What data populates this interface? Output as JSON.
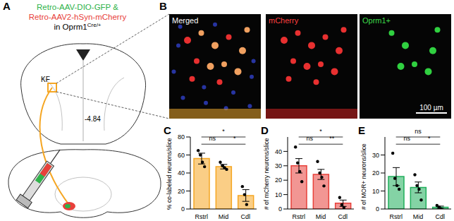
{
  "panel_a": {
    "letter": "A",
    "lines": [
      {
        "text": "Retro-AAV-DIO-GFP &",
        "color": "#2fb34a"
      },
      {
        "text": "Retro-AAV2-hSyn-mCherry",
        "color": "#e8403a"
      },
      {
        "text": "in Oprm1",
        "superscript": "Cre/+",
        "color": "#000000"
      }
    ],
    "region": "KF",
    "bregma": "-4.84"
  },
  "panel_b": {
    "letter": "B",
    "images": [
      {
        "label": "Merged",
        "color": "#ffffff"
      },
      {
        "label": "mCherry",
        "color": "#ff4040"
      },
      {
        "label": "Oprm1+",
        "color": "#3ddc4a"
      }
    ],
    "scale_bar": "100 µm"
  },
  "chart_data": [
    {
      "type": "bar",
      "letter": "C",
      "y_label": "% co-labeled neurons/slice",
      "categories": [
        "Rstrl",
        "Mid",
        "Cdl"
      ],
      "values": [
        56,
        47,
        15
      ],
      "error": [
        6,
        2.5,
        6.5
      ],
      "points": [
        [
          65,
          60,
          52,
          47
        ],
        [
          52,
          48,
          46,
          44
        ],
        [
          25,
          16,
          5
        ]
      ],
      "color": "#f5a623",
      "ylim": [
        0,
        80
      ],
      "yticks": [
        0,
        20,
        40,
        60,
        80
      ],
      "significance": [
        {
          "pair": [
            "Rstrl",
            "Mid"
          ],
          "label": "ns"
        },
        {
          "pair": [
            "Mid",
            "Cdl"
          ],
          "label": "*"
        },
        {
          "pair": [
            "Rstrl",
            "Cdl"
          ],
          "label": "*"
        }
      ]
    },
    {
      "type": "bar",
      "letter": "D",
      "y_label": "# of mCherry neurons/slice",
      "categories": [
        "Rstrl",
        "Mid",
        "Cdl"
      ],
      "values": [
        30,
        24,
        4
      ],
      "error": [
        5,
        3.5,
        2.2
      ],
      "points": [
        [
          43,
          32,
          26,
          19
        ],
        [
          33,
          25,
          22,
          16
        ],
        [
          8,
          3,
          1
        ]
      ],
      "color": "#e8403a",
      "ylim": [
        0,
        50
      ],
      "yticks": [
        0,
        10,
        20,
        30,
        40
      ],
      "significance": [
        {
          "pair": [
            "Rstrl",
            "Mid"
          ],
          "label": "ns"
        },
        {
          "pair": [
            "Mid",
            "Cdl"
          ],
          "label": "**"
        },
        {
          "pair": [
            "Rstrl",
            "Cdl"
          ],
          "label": "*"
        }
      ]
    },
    {
      "type": "bar",
      "letter": "E",
      "y_label": "# of MOR+ neurons/slice",
      "categories": [
        "Rstrl",
        "Mid",
        "Cdl"
      ],
      "values": [
        18,
        12,
        1
      ],
      "error": [
        5,
        3,
        0.6
      ],
      "points": [
        [
          31,
          17,
          13,
          11
        ],
        [
          19,
          13,
          11,
          5
        ],
        [
          2,
          1,
          0
        ]
      ],
      "color": "#1fae5b",
      "ylim": [
        0,
        40
      ],
      "yticks": [
        0,
        10,
        20,
        30
      ],
      "significance": [
        {
          "pair": [
            "Rstrl",
            "Mid"
          ],
          "label": "ns"
        },
        {
          "pair": [
            "Mid",
            "Cdl"
          ],
          "label": "*"
        },
        {
          "pair": [
            "Rstrl",
            "Cdl"
          ],
          "label": "ns"
        }
      ]
    }
  ]
}
